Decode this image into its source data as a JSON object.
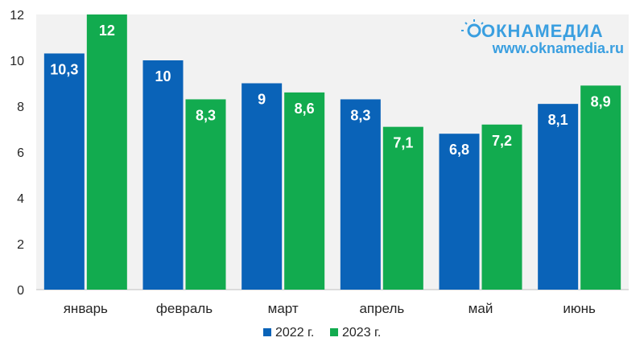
{
  "chart_data": {
    "type": "bar",
    "categories": [
      "январь",
      "февраль",
      "март",
      "апрель",
      "май",
      "июнь"
    ],
    "series": [
      {
        "name": "2022 г.",
        "color": "#0a63b8",
        "values": [
          10.3,
          10,
          9,
          8.3,
          6.8,
          8.1
        ],
        "labels": [
          "10,3",
          "10",
          "9",
          "8,3",
          "6,8",
          "8,1"
        ]
      },
      {
        "name": "2023 г.",
        "color": "#12ab4f",
        "values": [
          12,
          8.3,
          8.6,
          7.1,
          7.2,
          8.9
        ],
        "labels": [
          "12",
          "8,3",
          "8,6",
          "7,1",
          "7,2",
          "8,9"
        ]
      }
    ],
    "yticks": [
      "0",
      "2",
      "4",
      "6",
      "8",
      "10",
      "12"
    ],
    "ylim": [
      0,
      12
    ],
    "title": "",
    "xlabel": "",
    "ylabel": "",
    "legend": "bottom",
    "grid": false
  },
  "watermark": {
    "brand": "ОКНАМЕДИА",
    "url": "www.oknamedia.ru",
    "color": "#3a9fe0"
  },
  "colors": {
    "plot_bg": "#f2f2f2",
    "axis": "#bfbfbf"
  }
}
